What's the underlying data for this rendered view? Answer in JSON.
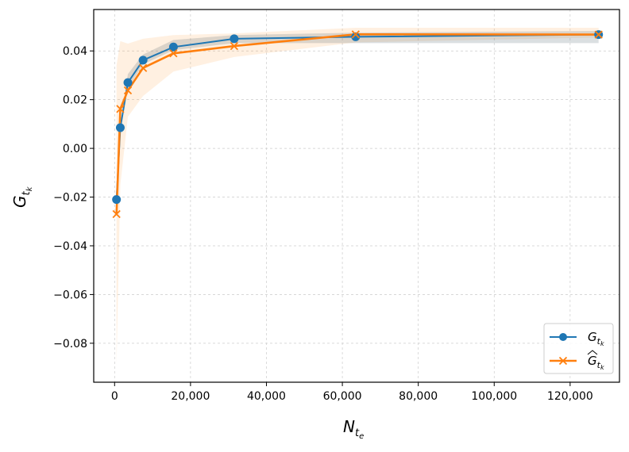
{
  "chart_data": {
    "type": "line",
    "x": [
      500,
      1500,
      3500,
      7500,
      15500,
      31500,
      63500,
      127500
    ],
    "series": [
      {
        "name": "G_{t_k}",
        "marker": "circle",
        "color": "#1f77b4",
        "values": [
          -0.021,
          0.0085,
          0.027,
          0.0362,
          0.0416,
          0.045,
          0.0458,
          0.0467
        ],
        "band_low": [
          -0.021,
          0.0085,
          0.0245,
          0.0345,
          0.0403,
          0.0432,
          0.0432,
          0.0432
        ],
        "band_high": [
          -0.021,
          0.0085,
          0.0305,
          0.0385,
          0.0445,
          0.0465,
          0.0475,
          0.0482
        ]
      },
      {
        "name": "Ĝ_{t_k}",
        "marker": "x",
        "color": "#ff7f0e",
        "values": [
          -0.027,
          0.0162,
          0.0238,
          0.033,
          0.039,
          0.042,
          0.0468,
          0.0467
        ],
        "band_low": [
          -0.089,
          -0.015,
          0.013,
          0.0215,
          0.0315,
          0.0375,
          0.0435,
          0.0455
        ],
        "band_high": [
          0.034,
          0.044,
          0.043,
          0.045,
          0.0465,
          0.0472,
          0.0495,
          0.0495
        ]
      }
    ],
    "xlim": [
      -5500,
      133000
    ],
    "ylim": [
      -0.096,
      0.057
    ],
    "xticks": [
      0,
      20000,
      40000,
      60000,
      80000,
      100000,
      120000
    ],
    "xtick_labels": [
      "0",
      "20,000",
      "40,000",
      "60,000",
      "80,000",
      "100,000",
      "120,000"
    ],
    "yticks": [
      -0.08,
      -0.06,
      -0.04,
      -0.02,
      0.0,
      0.02,
      0.04
    ],
    "ytick_labels": [
      "−0.08",
      "−0.06",
      "−0.04",
      "−0.02",
      "0.00",
      "0.02",
      "0.04"
    ],
    "xlabel": "N_{t_e}",
    "ylabel": "G_{t_k}",
    "grid": true,
    "legend_position": "lower-right"
  }
}
